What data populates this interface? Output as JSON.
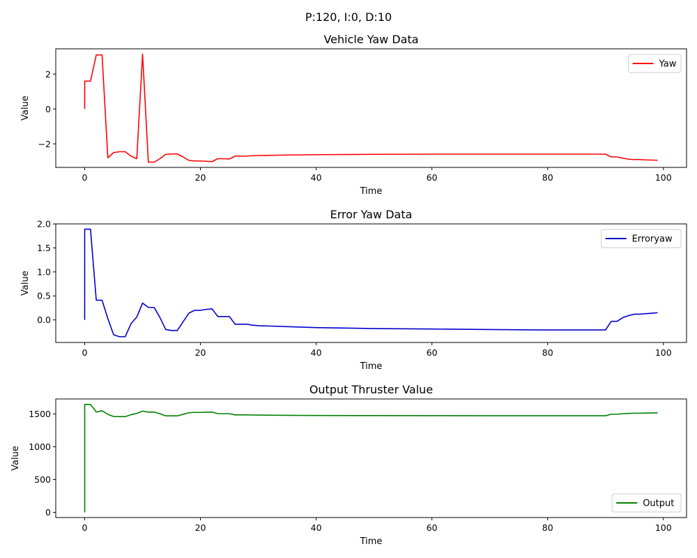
{
  "figure": {
    "suptitle": "P:120, I:0, D:10"
  },
  "chart_data": [
    {
      "type": "line",
      "title": "Vehicle Yaw Data",
      "xlabel": "Time",
      "ylabel": "Value",
      "xlim": [
        -5,
        104
      ],
      "ylim": [
        -3.35,
        3.45
      ],
      "xticks": [
        0,
        20,
        40,
        60,
        80,
        100
      ],
      "xtick_labels": [
        "0",
        "20",
        "40",
        "60",
        "80",
        "100"
      ],
      "yticks": [
        -2,
        0,
        2
      ],
      "ytick_labels": [
        "−2",
        "0",
        "2"
      ],
      "legend_position": "top-right",
      "series": [
        {
          "name": "Yaw",
          "color": "#ff0000",
          "x": [
            0,
            0,
            1,
            2,
            3,
            4,
            5,
            6,
            7,
            8,
            9,
            10,
            11,
            12,
            13,
            14,
            15,
            16,
            17,
            18,
            19,
            20,
            21,
            22,
            23,
            24,
            25,
            26,
            27,
            28,
            29,
            30,
            35,
            40,
            50,
            60,
            70,
            80,
            90,
            91,
            92,
            93,
            94,
            95,
            96,
            97,
            98,
            99
          ],
          "y": [
            0,
            1.6,
            1.6,
            3.1,
            3.1,
            -2.8,
            -2.5,
            -2.45,
            -2.45,
            -2.7,
            -2.85,
            3.15,
            -3.05,
            -3.05,
            -2.85,
            -2.6,
            -2.58,
            -2.58,
            -2.75,
            -2.95,
            -2.98,
            -2.98,
            -3.0,
            -3.02,
            -2.85,
            -2.85,
            -2.87,
            -2.7,
            -2.7,
            -2.7,
            -2.68,
            -2.67,
            -2.64,
            -2.62,
            -2.6,
            -2.59,
            -2.59,
            -2.59,
            -2.59,
            -2.75,
            -2.75,
            -2.82,
            -2.88,
            -2.9,
            -2.9,
            -2.92,
            -2.93,
            -2.94
          ]
        }
      ]
    },
    {
      "type": "line",
      "title": "Error Yaw Data",
      "xlabel": "Time",
      "ylabel": "Value",
      "xlim": [
        -5,
        104
      ],
      "ylim": [
        -0.47,
        2.0
      ],
      "xticks": [
        0,
        20,
        40,
        60,
        80,
        100
      ],
      "xtick_labels": [
        "0",
        "20",
        "40",
        "60",
        "80",
        "100"
      ],
      "yticks": [
        0.0,
        0.5,
        1.0,
        1.5,
        2.0
      ],
      "ytick_labels": [
        "0.0",
        "0.5",
        "1.0",
        "1.5",
        "2.0"
      ],
      "legend_position": "top-right",
      "series": [
        {
          "name": "Erroryaw",
          "color": "#0000cc",
          "x": [
            0,
            0,
            1,
            2,
            3,
            4,
            5,
            6,
            7,
            8,
            9,
            10,
            11,
            12,
            13,
            14,
            15,
            16,
            17,
            18,
            19,
            20,
            21,
            22,
            23,
            24,
            25,
            26,
            27,
            28,
            29,
            30,
            35,
            40,
            50,
            60,
            70,
            80,
            90,
            91,
            92,
            93,
            94,
            95,
            96,
            97,
            98,
            99
          ],
          "y": [
            0,
            1.89,
            1.89,
            0.41,
            0.41,
            0.03,
            -0.31,
            -0.35,
            -0.35,
            -0.08,
            0.06,
            0.35,
            0.26,
            0.26,
            0.05,
            -0.2,
            -0.22,
            -0.22,
            -0.04,
            0.14,
            0.2,
            0.2,
            0.22,
            0.23,
            0.07,
            0.07,
            0.07,
            -0.09,
            -0.09,
            -0.09,
            -0.11,
            -0.12,
            -0.14,
            -0.16,
            -0.18,
            -0.19,
            -0.2,
            -0.21,
            -0.21,
            -0.03,
            -0.03,
            0.05,
            0.09,
            0.12,
            0.12,
            0.13,
            0.14,
            0.15
          ]
        }
      ]
    },
    {
      "type": "line",
      "title": "Output Thruster Value",
      "xlabel": "Time",
      "ylabel": "Value",
      "xlim": [
        -5,
        104
      ],
      "ylim": [
        -80,
        1730
      ],
      "xticks": [
        0,
        20,
        40,
        60,
        80,
        100
      ],
      "xtick_labels": [
        "0",
        "20",
        "40",
        "60",
        "80",
        "100"
      ],
      "yticks": [
        0,
        500,
        1000,
        1500
      ],
      "ytick_labels": [
        "0",
        "500",
        "1000",
        "1500"
      ],
      "legend_position": "bottom-right",
      "series": [
        {
          "name": "Output",
          "color": "#008000",
          "x": [
            0,
            0,
            1,
            2,
            3,
            4,
            5,
            6,
            7,
            8,
            9,
            10,
            11,
            12,
            13,
            14,
            15,
            16,
            17,
            18,
            19,
            20,
            21,
            22,
            23,
            24,
            25,
            26,
            27,
            28,
            29,
            30,
            35,
            40,
            50,
            60,
            70,
            80,
            90,
            91,
            92,
            93,
            94,
            95,
            96,
            97,
            98,
            99
          ],
          "y": [
            0,
            1647,
            1647,
            1530,
            1550,
            1495,
            1462,
            1460,
            1460,
            1490,
            1510,
            1545,
            1530,
            1530,
            1505,
            1472,
            1472,
            1472,
            1495,
            1520,
            1525,
            1525,
            1528,
            1530,
            1505,
            1505,
            1505,
            1487,
            1487,
            1487,
            1485,
            1484,
            1481,
            1478,
            1476,
            1475,
            1474,
            1474,
            1474,
            1497,
            1497,
            1505,
            1510,
            1513,
            1513,
            1515,
            1516,
            1518
          ]
        }
      ]
    }
  ]
}
